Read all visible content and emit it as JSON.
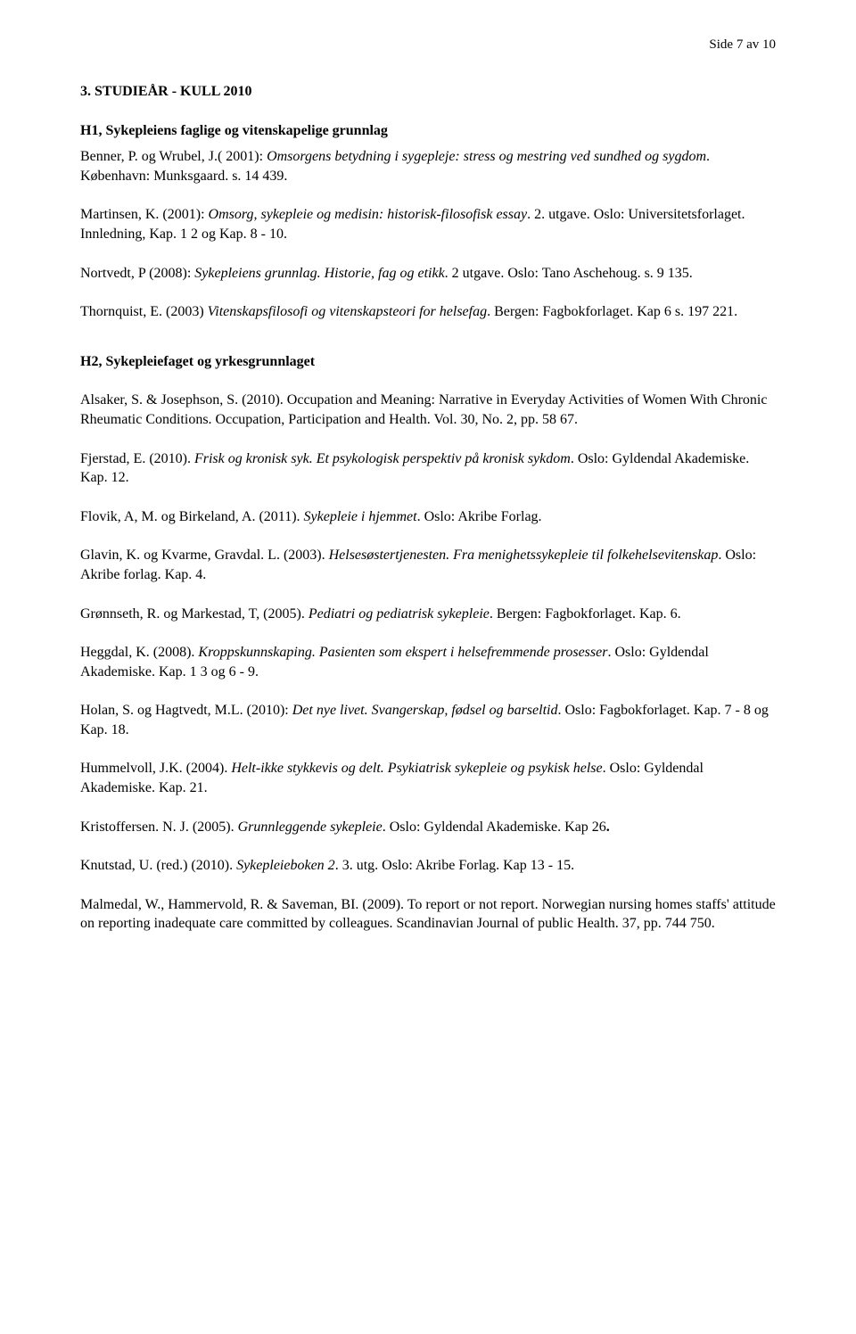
{
  "page_label": "Side 7 av 10",
  "section_title": "3. STUDIEÅR - KULL 2010",
  "sub_title": "H1, Sykepleiens faglige og vitenskapelige grunnlag",
  "h1": {
    "e1": {
      "a": "Benner, P. og Wrubel, J.( 2001): ",
      "i": "Omsorgens betydning i sygepleje: stress og mestring ved sundhed og sygdom",
      "b": ". København: Munksgaard. s. 14 439."
    },
    "e2": {
      "a": "Martinsen, K. (2001): ",
      "i": "Omsorg, sykepleie og medisin: historisk-filosofisk essay",
      "b": ". 2. utgave. Oslo: Universitetsforlaget. Innledning, Kap. 1 2 og Kap. 8 - 10."
    },
    "e3": {
      "a": "Nortvedt, P (2008): ",
      "i": "Sykepleiens grunnlag. Historie, fag og etikk",
      "b": ". 2 utgave. Oslo: Tano Aschehoug. s. 9 135."
    },
    "e4": {
      "a": "Thornquist, E. (2003) ",
      "i": "Vitenskapsfilosofi og vitenskapsteori for helsefag",
      "b": ". Bergen: Fagbokforlaget. Kap 6 s. 197 221."
    }
  },
  "h2_title": "H2, Sykepleiefaget og yrkesgrunnlaget",
  "h2": {
    "e1": "Alsaker, S. & Josephson, S. (2010). Occupation and Meaning: Narrative in Everyday Activities of Women With Chronic Rheumatic Conditions. Occupation, Participation and Health. Vol. 30, No. 2, pp. 58 67.",
    "e2": {
      "a": "Fjerstad, E. (2010). ",
      "i": "Frisk og kronisk syk. Et psykologisk perspektiv på kronisk sykdom",
      "b": ". Oslo: Gyldendal Akademiske. Kap. 12."
    },
    "e3": {
      "a": "Flovik, A, M. og Birkeland, A. (2011). ",
      "i": "Sykepleie i hjemmet",
      "b": ". Oslo: Akribe Forlag."
    },
    "e4": {
      "a": "Glavin, K. og Kvarme, Gravdal. L. (2003). ",
      "i": "Helsesøstertjenesten. Fra menighetssykepleie til folkehelsevitenskap",
      "b": ". Oslo: Akribe forlag. Kap. 4."
    },
    "e5": {
      "a": "Grønnseth, R. og Markestad, T, (2005). ",
      "i": "Pediatri og pediatrisk sykepleie",
      "b": ". Bergen: Fagbokforlaget. Kap. 6."
    },
    "e6": {
      "a": "Heggdal, K. (2008). ",
      "i": "Kroppskunnskaping. Pasienten som ekspert i helsefremmende prosesser",
      "b": ". Oslo: Gyldendal Akademiske. Kap. 1 3 og 6 - 9."
    },
    "e7": {
      "a": "Holan, S. og Hagtvedt, M.L. (2010): ",
      "i": "Det nye livet. Svangerskap, fødsel og barseltid",
      "b": ". Oslo: Fagbokforlaget. Kap. 7 - 8 og Kap. 18."
    },
    "e8": {
      "a": "Hummelvoll, J.K. (2004). ",
      "i": "Helt-ikke stykkevis og delt. Psykiatrisk sykepleie og psykisk helse",
      "b": ". Oslo: Gyldendal Akademiske. Kap. 21."
    },
    "e9": {
      "a": "Kristoffersen. N. J. (2005). ",
      "i": "Grunnleggende sykepleie",
      "b": ". Oslo: Gyldendal Akademiske. Kap 26",
      "c": "."
    },
    "e10": {
      "a": "Knutstad, U. (red.) (2010). ",
      "i": "Sykepleieboken 2",
      "b": ". 3. utg. Oslo: Akribe Forlag. Kap 13 - 15."
    },
    "e11": "Malmedal, W., Hammervold, R. & Saveman, BI. (2009). To report or not report. Norwegian nursing homes staffs' attitude on reporting inadequate care committed by colleagues. Scandinavian Journal of public Health. 37, pp. 744 750."
  }
}
